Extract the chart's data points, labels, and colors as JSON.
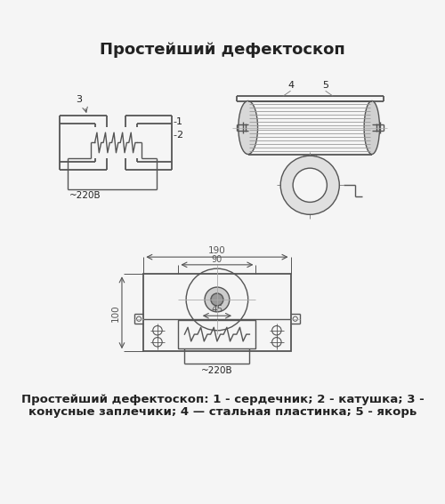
{
  "title": "Простейший дефектоскоп",
  "title_fontsize": 13,
  "caption_line1": "Простейший дефектоскоп: 1 - сердечник; 2 - катушка; 3 -",
  "caption_line2": "конусные заплечики; 4 — стальная пластинка; 5 - якорь",
  "caption_fontsize": 9.5,
  "bg_color": "#f5f5f5",
  "line_color": "#555555",
  "dim_color": "#555555",
  "label_color": "#222222",
  "voltage_label": "~220В",
  "dim_190": "190",
  "dim_90": "90",
  "dim_100": "100",
  "dim_45": "45",
  "label_1": "1",
  "label_2": "2",
  "label_3": "3",
  "label_4": "4",
  "label_5": "5"
}
